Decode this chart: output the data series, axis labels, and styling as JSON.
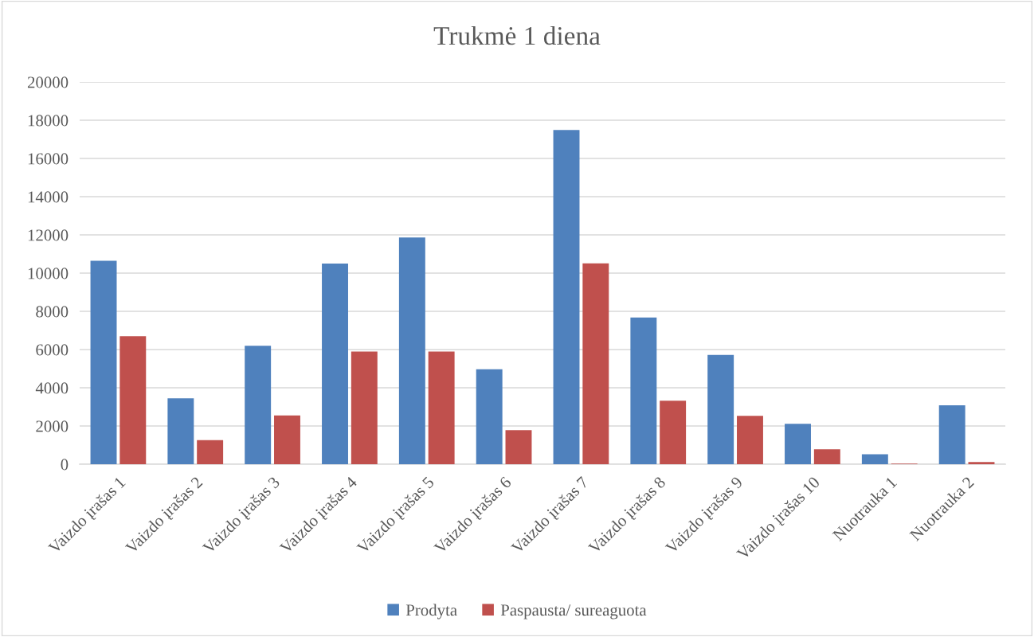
{
  "chart_data": {
    "type": "bar",
    "title": "Trukmė 1 diena",
    "categories": [
      "Vaizdo įrašas 1",
      "Vaizdo įrašas 2",
      "Vaizdo įrašas 3",
      "Vaizdo įrašas 4",
      "Vaizdo įrašas 5",
      "Vaizdo įrašas 6",
      "Vaizdo įrašas 7",
      "Vaizdo įrašas 8",
      "Vaizdo įrašas 9",
      "Vaizdo įrašas 10",
      "Nuotrauka 1",
      "Nuotrauka 2"
    ],
    "series": [
      {
        "name": "Prodyta",
        "color": "#4f81bd",
        "values": [
          10650,
          3450,
          6200,
          10500,
          11860,
          4970,
          17490,
          7680,
          5720,
          2110,
          520,
          3080
        ]
      },
      {
        "name": "Paspausta/ sureaguota",
        "color": "#c0504d",
        "values": [
          6700,
          1260,
          2550,
          5900,
          5900,
          1780,
          10510,
          3320,
          2530,
          780,
          30,
          110
        ]
      }
    ],
    "ylim": [
      0,
      20000
    ],
    "yticks": [
      0,
      2000,
      4000,
      6000,
      8000,
      10000,
      12000,
      14000,
      16000,
      18000,
      20000
    ],
    "grid": "y",
    "legend": "bottom"
  }
}
